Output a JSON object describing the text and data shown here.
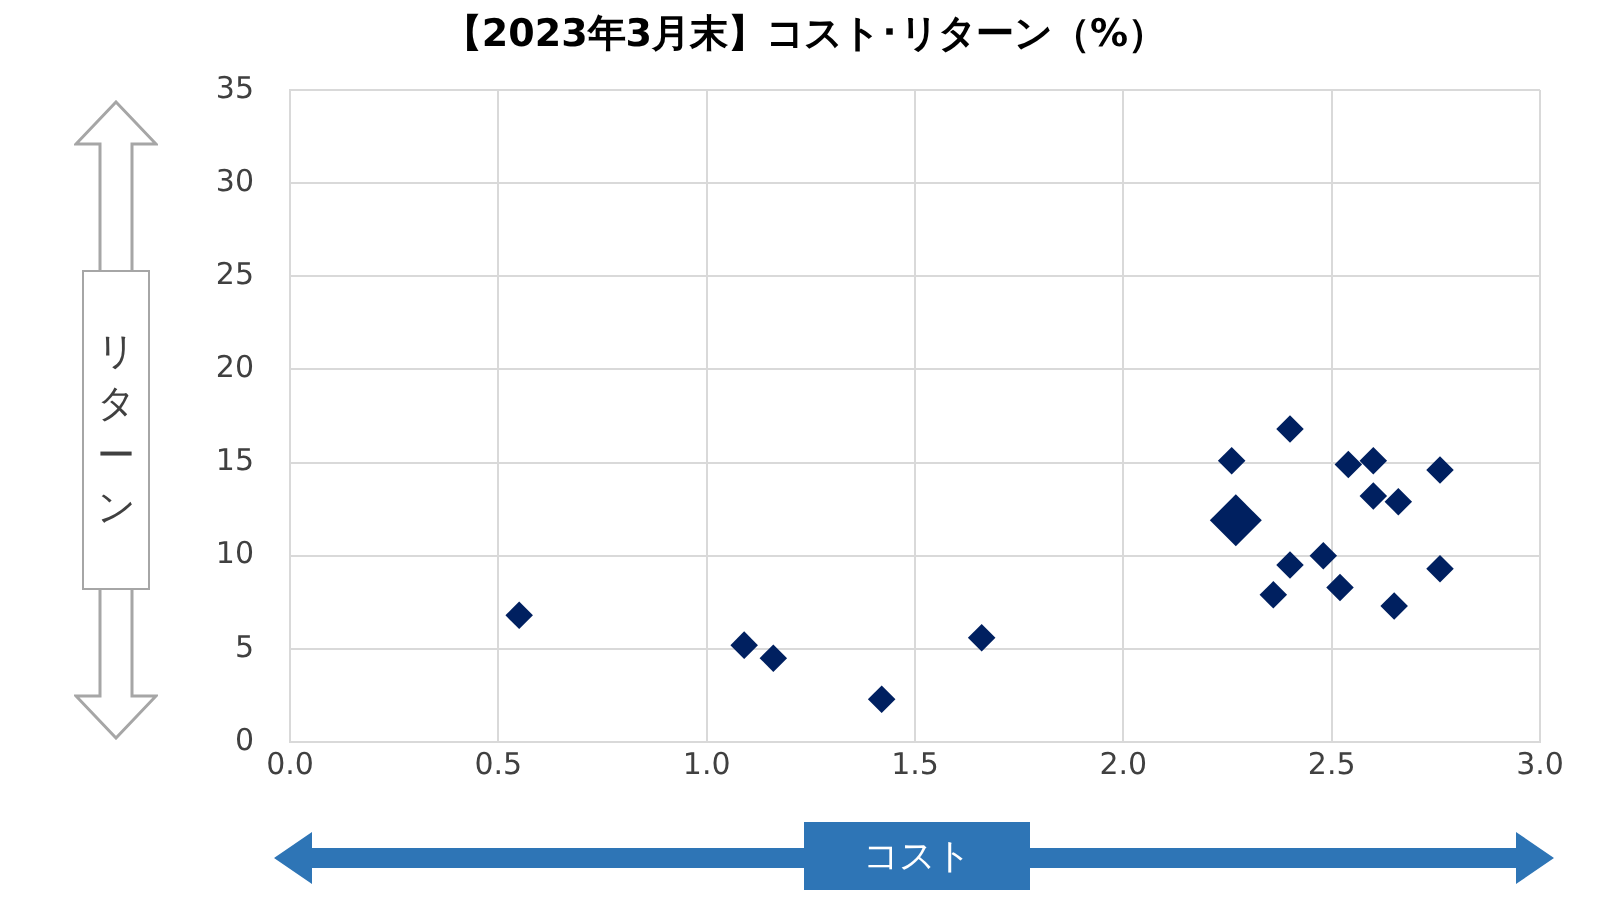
{
  "chart_data": {
    "type": "bubble",
    "title": "【2023年3月末】コスト･リターン（%）",
    "xlabel": "コスト",
    "ylabel": "リターン",
    "marker": "diamond",
    "grid": true,
    "legend": false,
    "x": [
      0.55,
      1.09,
      1.16,
      1.42,
      1.66,
      2.4,
      2.26,
      2.54,
      2.6,
      2.76,
      2.6,
      2.66,
      2.27,
      2.48,
      2.4,
      2.76,
      2.36,
      2.52,
      2.65
    ],
    "series": [
      {
        "color": "#002060",
        "values": [
          6.8,
          5.2,
          4.5,
          2.3,
          5.6,
          16.8,
          15.1,
          14.9,
          15.1,
          14.6,
          13.2,
          12.9,
          11.9,
          10.0,
          9.5,
          9.3,
          7.9,
          8.3,
          7.3
        ],
        "sizes": [
          0.28,
          0.28,
          0.28,
          0.28,
          0.28,
          0.28,
          0.28,
          0.28,
          0.28,
          0.28,
          0.28,
          0.28,
          1,
          0.28,
          0.28,
          0.28,
          0.28,
          0.28,
          0.28
        ]
      }
    ],
    "xlim": [
      0,
      3
    ],
    "xticks": [
      {
        "value": 0,
        "label": "0.0"
      },
      {
        "value": 0.5,
        "label": "0.5"
      },
      {
        "value": 1,
        "label": "1.0"
      },
      {
        "value": 1.5,
        "label": "1.5"
      },
      {
        "value": 2,
        "label": "2.0"
      },
      {
        "value": 2.5,
        "label": "2.5"
      },
      {
        "value": 3,
        "label": "3.0"
      }
    ],
    "ylim": [
      0,
      35
    ],
    "yticks": [
      0,
      5,
      10,
      15,
      20,
      25,
      30,
      35
    ]
  }
}
